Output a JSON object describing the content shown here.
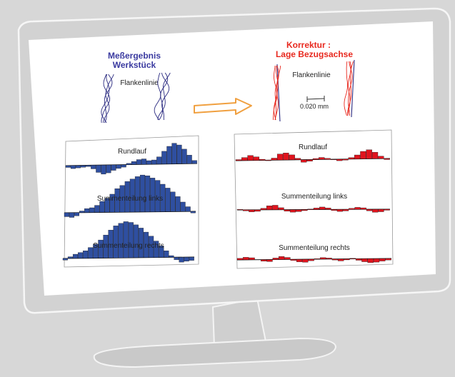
{
  "left_panel": {
    "title_line1": "Meßergebnis",
    "title_line2": "Werkstück",
    "trace_label": "Flankenlinie",
    "colors": {
      "title": "#3a3aa0",
      "trace": "#2a2a80",
      "bars": "#2f4fa0"
    },
    "charts": [
      {
        "label": "Rundlauf",
        "values": [
          -0.3,
          -0.5,
          -0.4,
          -0.3,
          -0.2,
          -0.6,
          -1.2,
          -1.5,
          -1.3,
          -0.9,
          -0.6,
          -0.4,
          0.2,
          0.5,
          0.8,
          0.9,
          0.6,
          0.7,
          1.2,
          2.1,
          2.9,
          3.4,
          3.1,
          2.4,
          1.4,
          0.5
        ]
      },
      {
        "label": "Summenteilung links",
        "values": [
          -0.5,
          -0.6,
          -0.4,
          0.2,
          0.5,
          0.6,
          0.9,
          1.4,
          1.8,
          2.3,
          3.0,
          3.4,
          3.9,
          4.2,
          4.5,
          4.7,
          4.6,
          4.3,
          4.0,
          3.5,
          3.0,
          2.5,
          1.9,
          1.2,
          0.6,
          -0.2
        ]
      },
      {
        "label": "Summenteilung rechts",
        "values": [
          -0.2,
          0.2,
          0.5,
          0.7,
          0.9,
          1.3,
          1.7,
          2.2,
          2.8,
          3.4,
          3.9,
          4.2,
          4.4,
          4.3,
          4.0,
          3.6,
          3.1,
          2.6,
          2.0,
          1.4,
          0.8,
          0.2,
          -0.3,
          -0.6,
          -0.5,
          -0.4
        ]
      }
    ]
  },
  "right_panel": {
    "title_line1": "Korrektur :",
    "title_line2": "Lage Bezugsachse",
    "trace_label": "Flankenlinie",
    "scale_label": "0.020 mm",
    "colors": {
      "title": "#e8281e",
      "trace": "#e8281e",
      "bars": "#e0141e"
    },
    "charts": [
      {
        "label": "Rundlauf",
        "values": [
          0.2,
          0.6,
          1.0,
          0.7,
          0.2,
          -0.1,
          0.4,
          1.2,
          1.4,
          1.0,
          0.3,
          -0.5,
          -0.3,
          0.2,
          0.4,
          0.2,
          -0.1,
          -0.3,
          -0.2,
          0.3,
          0.8,
          1.5,
          1.8,
          1.3,
          0.5,
          -0.2
        ]
      },
      {
        "label": "Summenteilung links",
        "values": [
          0.1,
          -0.2,
          -0.4,
          -0.3,
          0.3,
          0.8,
          0.9,
          0.4,
          -0.3,
          -0.5,
          -0.4,
          -0.2,
          0.1,
          0.3,
          0.5,
          0.3,
          -0.2,
          -0.4,
          -0.3,
          0.2,
          0.4,
          0.3,
          -0.3,
          -0.6,
          -0.5,
          -0.2
        ]
      },
      {
        "label": "Summenteilung rechts",
        "values": [
          0.3,
          0.5,
          0.4,
          0.0,
          -0.3,
          -0.4,
          0.3,
          0.6,
          0.4,
          -0.2,
          -0.5,
          -0.6,
          -0.3,
          0.1,
          0.3,
          0.2,
          -0.2,
          -0.4,
          -0.2,
          0.1,
          -0.3,
          -0.6,
          -0.8,
          -0.7,
          -0.5,
          -0.3
        ]
      }
    ]
  },
  "arrow_color": "#f0a040"
}
